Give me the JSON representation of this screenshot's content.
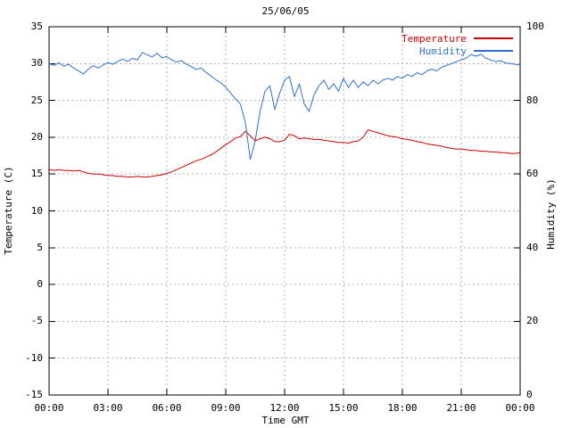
{
  "title": "25/06/05",
  "axes": {
    "x": {
      "label": "Time GMT",
      "min": 0,
      "max": 24,
      "tick_hours": [
        0,
        3,
        6,
        9,
        12,
        15,
        18,
        21,
        24
      ],
      "tick_labels": [
        "00:00",
        "03:00",
        "06:00",
        "09:00",
        "12:00",
        "15:00",
        "18:00",
        "21:00",
        "00:00"
      ]
    },
    "y_left": {
      "label": "Temperature (C)",
      "min": -15,
      "max": 35,
      "ticks": [
        35,
        30,
        25,
        20,
        15,
        10,
        5,
        0,
        -5,
        -10,
        -15
      ]
    },
    "y_right": {
      "label": "Humidity (%)",
      "min": 0,
      "max": 100,
      "ticks": [
        100,
        80,
        60,
        40,
        20,
        0
      ]
    }
  },
  "legend": [
    {
      "name": "Temperature",
      "color": "#cc0000"
    },
    {
      "name": "Humidity",
      "color": "#2e6fd0"
    }
  ],
  "colors": {
    "grid": "#b0b0b0",
    "border": "#000000",
    "background": "#ffffff",
    "temperature": "#cc0000",
    "humidity": "#2e6fd0"
  },
  "chart_data": {
    "type": "line",
    "title": "25/06/05",
    "xlabel": "Time GMT",
    "x_unit": "hours GMT",
    "grid": true,
    "legend_position": "top-right",
    "x": [
      0,
      0.25,
      0.5,
      0.75,
      1,
      1.25,
      1.5,
      1.75,
      2,
      2.25,
      2.5,
      2.75,
      3,
      3.25,
      3.5,
      3.75,
      4,
      4.25,
      4.5,
      4.75,
      5,
      5.25,
      5.5,
      5.75,
      6,
      6.25,
      6.5,
      6.75,
      7,
      7.25,
      7.5,
      7.75,
      8,
      8.25,
      8.5,
      8.75,
      9,
      9.25,
      9.5,
      9.75,
      10,
      10.25,
      10.5,
      10.75,
      11,
      11.25,
      11.5,
      11.75,
      12,
      12.25,
      12.5,
      12.75,
      13,
      13.25,
      13.5,
      13.75,
      14,
      14.25,
      14.5,
      14.75,
      15,
      15.25,
      15.5,
      15.75,
      16,
      16.25,
      16.5,
      16.75,
      17,
      17.25,
      17.5,
      17.75,
      18,
      18.25,
      18.5,
      18.75,
      19,
      19.25,
      19.5,
      19.75,
      20,
      20.25,
      20.5,
      20.75,
      21,
      21.25,
      21.5,
      21.75,
      22,
      22.25,
      22.5,
      22.75,
      23,
      23.25,
      23.5,
      23.75,
      24
    ],
    "series": [
      {
        "name": "Temperature",
        "axis": "left",
        "color": "#cc0000",
        "ylabel": "Temperature (C)",
        "ylim": [
          -15,
          35
        ],
        "values": [
          15.6,
          15.5,
          15.6,
          15.5,
          15.5,
          15.4,
          15.5,
          15.3,
          15.1,
          15.0,
          15.0,
          14.9,
          14.8,
          14.8,
          14.7,
          14.7,
          14.6,
          14.6,
          14.7,
          14.6,
          14.6,
          14.7,
          14.8,
          14.9,
          15.1,
          15.3,
          15.6,
          15.9,
          16.2,
          16.5,
          16.8,
          17.0,
          17.3,
          17.6,
          18.0,
          18.5,
          19.0,
          19.4,
          19.9,
          20.1,
          20.8,
          20.2,
          19.5,
          19.8,
          20.0,
          19.8,
          19.4,
          19.4,
          19.6,
          20.4,
          20.2,
          19.8,
          19.9,
          19.8,
          19.7,
          19.7,
          19.6,
          19.5,
          19.4,
          19.3,
          19.3,
          19.2,
          19.4,
          19.5,
          20.0,
          21.0,
          20.8,
          20.6,
          20.4,
          20.2,
          20.1,
          20.0,
          19.8,
          19.7,
          19.6,
          19.4,
          19.3,
          19.1,
          19.0,
          18.9,
          18.8,
          18.6,
          18.5,
          18.4,
          18.4,
          18.3,
          18.2,
          18.2,
          18.1,
          18.1,
          18.0,
          18.0,
          17.9,
          17.9,
          17.8,
          17.8,
          17.9
        ]
      },
      {
        "name": "Humidity",
        "axis": "right",
        "color": "#2e6fd0",
        "ylabel": "Humidity (%)",
        "ylim": [
          0,
          100
        ],
        "values": [
          90.0,
          89.5,
          90.2,
          89.3,
          89.8,
          88.8,
          88.0,
          87.2,
          88.5,
          89.4,
          88.8,
          89.6,
          90.3,
          89.8,
          90.6,
          91.2,
          90.6,
          91.4,
          91.0,
          93.0,
          92.4,
          91.8,
          92.8,
          91.6,
          91.9,
          91.0,
          90.4,
          90.8,
          89.8,
          89.2,
          88.4,
          88.8,
          87.6,
          86.6,
          85.6,
          84.8,
          83.6,
          82.0,
          80.4,
          79.0,
          74.0,
          64.0,
          69.0,
          77.0,
          82.5,
          84.0,
          77.5,
          82.0,
          85.5,
          86.5,
          81.0,
          84.5,
          79.0,
          77.0,
          81.5,
          84.0,
          85.5,
          83.0,
          84.5,
          82.5,
          86.0,
          83.5,
          85.5,
          83.5,
          85.0,
          84.0,
          85.5,
          84.5,
          85.5,
          86.0,
          85.5,
          86.5,
          86.0,
          87.0,
          86.5,
          87.5,
          87.0,
          88.0,
          88.5,
          88.0,
          89.0,
          89.5,
          90.0,
          90.5,
          91.0,
          91.5,
          92.5,
          92.0,
          92.5,
          91.5,
          91.0,
          90.5,
          90.8,
          90.2,
          90.0,
          89.8,
          89.6
        ]
      }
    ]
  }
}
